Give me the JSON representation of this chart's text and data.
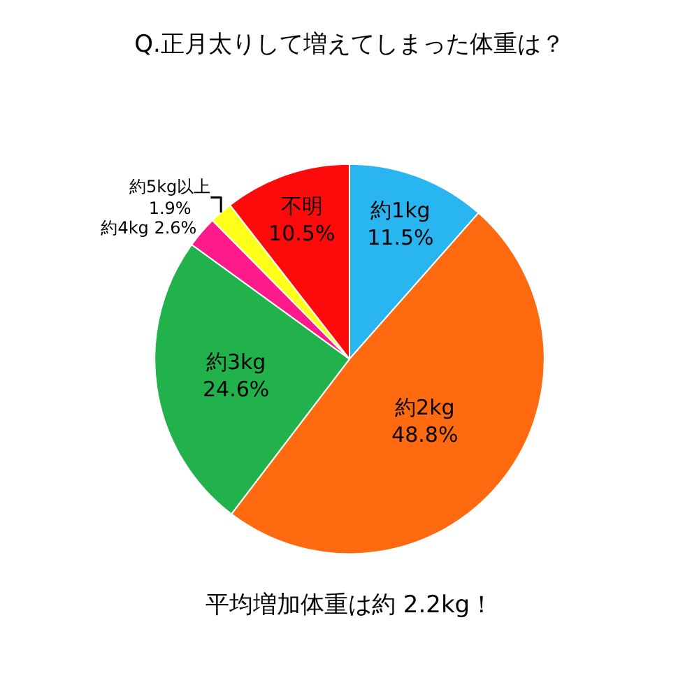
{
  "chart_data": {
    "type": "pie",
    "title": "Q.正月太りして増えてしまった体重は？",
    "categories": [
      "約1kg",
      "約2kg",
      "約3kg",
      "約4kg",
      "約5kg以上",
      "不明"
    ],
    "values": [
      11.5,
      48.8,
      24.6,
      2.6,
      1.9,
      10.5
    ],
    "value_labels": [
      "11.5%",
      "48.8%",
      "24.6%",
      "2.6%",
      "1.9%",
      "10.5%"
    ],
    "colors": [
      "#29b5f0",
      "#ff6a10",
      "#22b24c",
      "#ff1a8c",
      "#ffff1a",
      "#ff0a0a"
    ],
    "legend": false,
    "annotations": [
      "平均増加体重は約 2.2kg！"
    ]
  }
}
